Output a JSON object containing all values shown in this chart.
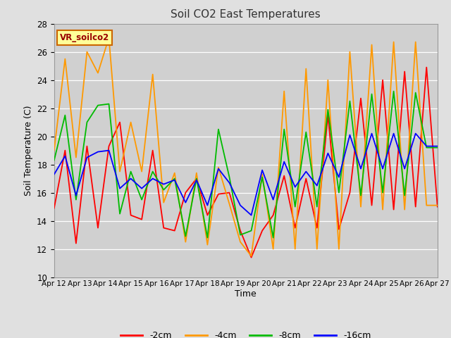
{
  "title": "Soil CO2 East Temperatures",
  "xlabel": "Time",
  "ylabel": "Soil Temperature (C)",
  "ylim": [
    10,
    28
  ],
  "colors": {
    "-2cm": "#ff0000",
    "-4cm": "#ff9900",
    "-8cm": "#00bb00",
    "-16cm": "#0000ff"
  },
  "legend_label": "VR_soilco2",
  "legend_box_facecolor": "#ffff99",
  "legend_box_edgecolor": "#cc6600",
  "fig_facecolor": "#e0e0e0",
  "plot_facecolor": "#d0d0d0",
  "grid_color": "#ffffff",
  "x_tick_labels": [
    "Apr 12",
    "Apr 13",
    "Apr 14",
    "Apr 15",
    "Apr 16",
    "Apr 17",
    "Apr 18",
    "Apr 19",
    "Apr 20",
    "Apr 21",
    "Apr 22",
    "Apr 23",
    "Apr 24",
    "Apr 25",
    "Apr 26",
    "Apr 27"
  ],
  "series": {
    "-2cm": [
      14.9,
      19.0,
      12.4,
      19.3,
      13.5,
      19.3,
      21.0,
      14.4,
      14.1,
      19.0,
      13.5,
      13.3,
      16.0,
      17.0,
      14.4,
      15.9,
      16.0,
      13.3,
      11.4,
      13.3,
      14.4,
      17.2,
      13.5,
      17.0,
      13.5,
      21.5,
      13.4,
      16.0,
      22.7,
      15.1,
      24.0,
      14.8,
      24.6,
      15.0,
      24.9,
      15.0
    ],
    "-4cm": [
      19.0,
      25.5,
      18.5,
      26.0,
      24.5,
      27.0,
      17.5,
      21.0,
      17.5,
      24.4,
      15.3,
      17.4,
      12.5,
      17.4,
      12.3,
      17.8,
      15.2,
      12.5,
      11.5,
      17.3,
      12.0,
      23.2,
      12.0,
      24.8,
      12.0,
      24.0,
      12.0,
      26.0,
      15.0,
      26.5,
      14.8,
      26.7,
      14.8,
      26.7,
      15.1,
      15.1
    ],
    "-8cm": [
      18.3,
      21.5,
      15.5,
      21.0,
      22.2,
      22.3,
      14.5,
      17.5,
      15.5,
      17.5,
      16.2,
      17.0,
      12.9,
      17.0,
      12.8,
      20.5,
      17.1,
      13.0,
      13.3,
      17.1,
      12.8,
      20.5,
      15.0,
      20.3,
      15.0,
      21.9,
      16.0,
      22.5,
      15.8,
      23.0,
      16.0,
      23.2,
      15.8,
      23.1,
      19.2,
      19.2
    ],
    "-16cm": [
      17.3,
      18.6,
      15.8,
      18.5,
      18.9,
      19.0,
      16.3,
      17.0,
      16.3,
      17.0,
      16.6,
      16.9,
      15.3,
      16.9,
      15.1,
      17.7,
      16.7,
      15.1,
      14.4,
      17.6,
      15.5,
      18.2,
      16.4,
      17.5,
      16.5,
      18.8,
      17.1,
      20.1,
      17.7,
      20.2,
      17.7,
      20.2,
      17.7,
      20.2,
      19.3,
      19.3
    ]
  }
}
